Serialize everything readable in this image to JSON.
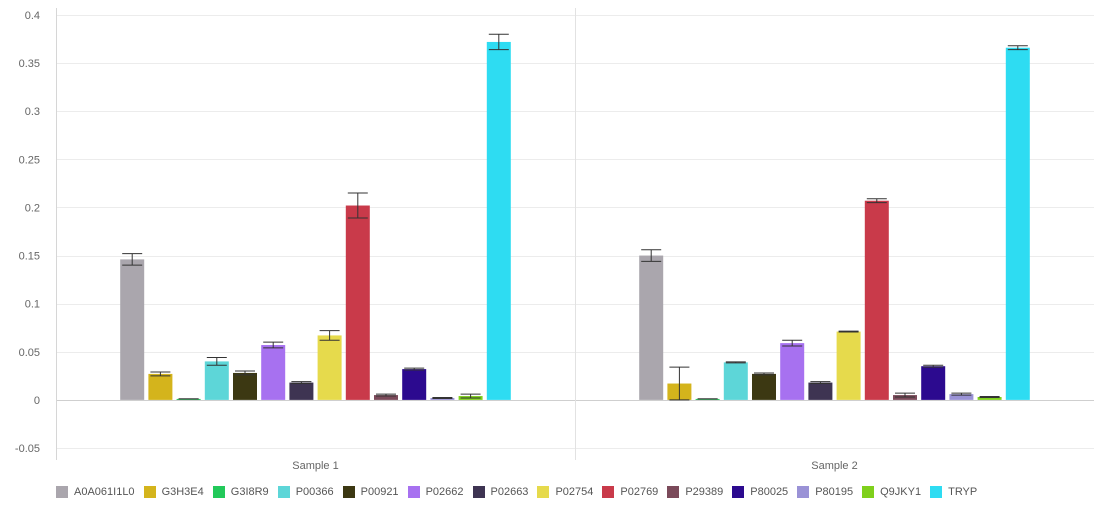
{
  "chart_data": {
    "type": "bar",
    "title": "",
    "xlabel": "",
    "ylabel": "",
    "ylim": [
      -0.05,
      0.4
    ],
    "yticks": [
      "0.4",
      "0.35",
      "0.3",
      "0.25",
      "0.2",
      "0.15",
      "0.1",
      "0.05",
      "0",
      "-0.05"
    ],
    "ytick_values": [
      0.4,
      0.35,
      0.3,
      0.25,
      0.2,
      0.15,
      0.1,
      0.05,
      0,
      -0.05
    ],
    "categories": [
      "Sample 1",
      "Sample 2"
    ],
    "grid": true,
    "legend_position": "bottom-left",
    "error_bars": true,
    "series": [
      {
        "name": "A0A061I1L0",
        "color": "#aaa6ad",
        "values": [
          0.146,
          0.15
        ],
        "errors": [
          0.006,
          0.006
        ]
      },
      {
        "name": "G3H3E4",
        "color": "#d4b41c",
        "values": [
          0.027,
          0.017
        ],
        "errors": [
          0.002,
          0.017
        ]
      },
      {
        "name": "G3I8R9",
        "color": "#22c95a",
        "values": [
          0.001,
          0.001
        ],
        "errors": [
          0,
          0
        ]
      },
      {
        "name": "P00366",
        "color": "#5dd6d8",
        "values": [
          0.04,
          0.039
        ],
        "errors": [
          0.004,
          0.0005
        ]
      },
      {
        "name": "P00921",
        "color": "#3c3812",
        "values": [
          0.028,
          0.027
        ],
        "errors": [
          0.002,
          0.001
        ]
      },
      {
        "name": "P02662",
        "color": "#a771f0",
        "values": [
          0.057,
          0.059
        ],
        "errors": [
          0.003,
          0.003
        ]
      },
      {
        "name": "P02663",
        "color": "#3e3452",
        "values": [
          0.018,
          0.018
        ],
        "errors": [
          0.001,
          0.001
        ]
      },
      {
        "name": "P02754",
        "color": "#e6da4c",
        "values": [
          0.067,
          0.071
        ],
        "errors": [
          0.005,
          0.0005
        ]
      },
      {
        "name": "P02769",
        "color": "#c93a4a",
        "values": [
          0.202,
          0.207
        ],
        "errors": [
          0.013,
          0.002
        ]
      },
      {
        "name": "P29389",
        "color": "#7b4a5a",
        "values": [
          0.005,
          0.005
        ],
        "errors": [
          0.001,
          0.002
        ]
      },
      {
        "name": "P80025",
        "color": "#2c0a8f",
        "values": [
          0.032,
          0.035
        ],
        "errors": [
          0.001,
          0.001
        ]
      },
      {
        "name": "P80195",
        "color": "#9a92d6",
        "values": [
          0.002,
          0.006
        ],
        "errors": [
          0.0005,
          0.001
        ]
      },
      {
        "name": "Q9JKY1",
        "color": "#7fd01c",
        "values": [
          0.004,
          0.003
        ],
        "errors": [
          0.002,
          0.0005
        ]
      },
      {
        "name": "TRYP",
        "color": "#2edcf2",
        "values": [
          0.372,
          0.366
        ],
        "errors": [
          0.008,
          0.002
        ]
      }
    ]
  }
}
